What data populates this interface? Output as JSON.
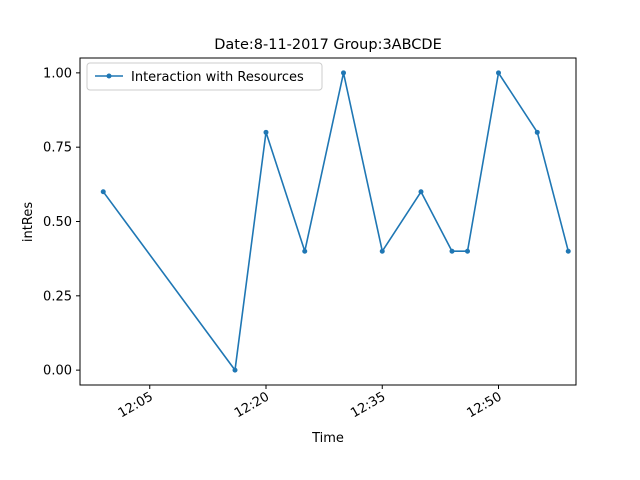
{
  "chart_data": {
    "type": "line",
    "title": "Date:8-11-2017  Group:3ABCDE",
    "xlabel": "Time",
    "ylabel": "intRes",
    "x": [
      "11:59",
      "12:16",
      "12:20",
      "12:25",
      "12:30",
      "12:35",
      "12:40",
      "12:44",
      "12:46",
      "12:50",
      "12:55",
      "12:59"
    ],
    "series": [
      {
        "name": "Interaction with Resources",
        "color": "#1f77b4",
        "values": [
          0.6,
          0.0,
          0.8,
          0.4,
          1.0,
          0.4,
          0.6,
          0.4,
          0.4,
          1.0,
          0.8,
          0.4
        ]
      }
    ],
    "xlim": [
      "11:56",
      "13:00"
    ],
    "ylim": [
      -0.05,
      1.05
    ],
    "xticks": [
      "12:05",
      "12:20",
      "12:35",
      "12:50"
    ],
    "yticks": [
      0.0,
      0.25,
      0.5,
      0.75,
      1.0
    ],
    "ytick_labels": [
      "0.00",
      "0.25",
      "0.50",
      "0.75",
      "1.00"
    ],
    "grid": false,
    "legend": "upper-left"
  }
}
